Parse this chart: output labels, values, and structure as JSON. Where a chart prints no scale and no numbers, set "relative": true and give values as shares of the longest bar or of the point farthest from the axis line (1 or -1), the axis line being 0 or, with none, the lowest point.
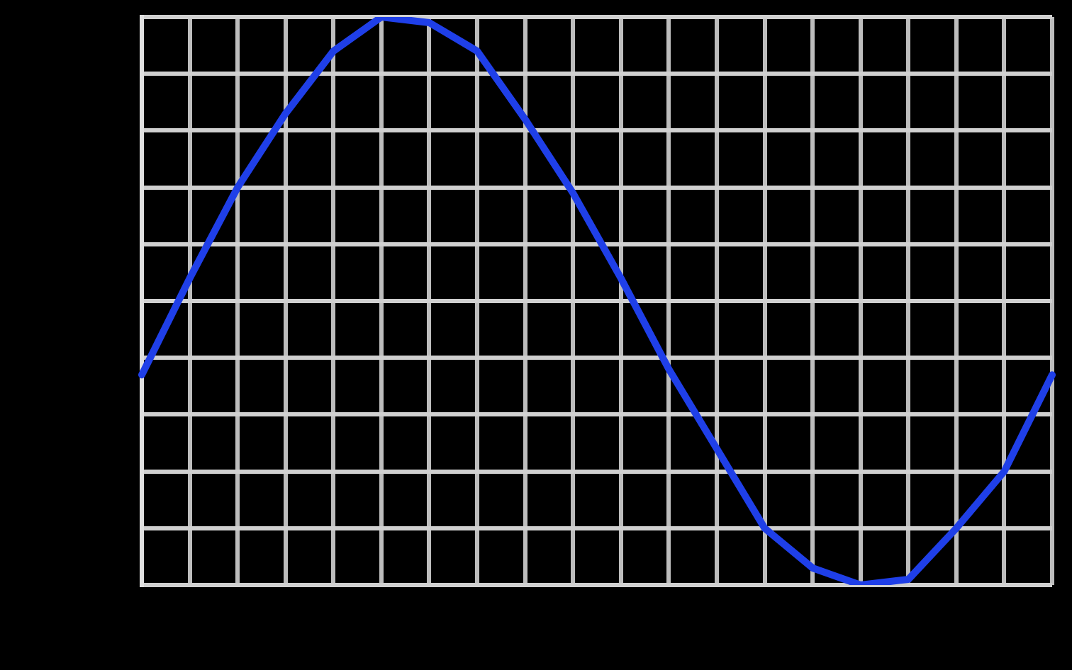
{
  "chart_data": {
    "type": "line",
    "relative": true,
    "grid": true,
    "marker": "none",
    "line_style": "solid",
    "categories": [
      null,
      null,
      null,
      null,
      null,
      null,
      null,
      null,
      null,
      null,
      null,
      null,
      null,
      null,
      null,
      null,
      null,
      null,
      null,
      null
    ],
    "series": [
      {
        "color": "#1f3fe8",
        "values": [
          0.37,
          0.54,
          0.7,
          0.83,
          0.94,
          1,
          0.99,
          0.94,
          0.82,
          0.69,
          0.54,
          0.38,
          0.24,
          0.1,
          0.03,
          0,
          0.01,
          0.1,
          0.2,
          0.37
        ]
      }
    ]
  }
}
